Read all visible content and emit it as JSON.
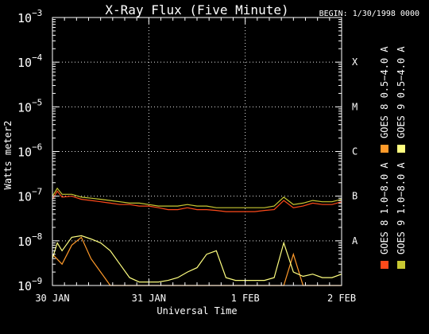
{
  "chart_data": {
    "type": "line",
    "title": "X-Ray Flux (Five Minute)",
    "begin_label": "BEGIN: 1/30/1998 0000",
    "xlabel": "Universal Time",
    "ylabel": "Watts meter2",
    "x_ticks": [
      "30 JAN",
      "31 JAN",
      "1 FEB",
      "2 FEB"
    ],
    "x_range_days": [
      0,
      3
    ],
    "y_scale": "log",
    "y_range": [
      1e-09,
      0.001
    ],
    "y_ticks": [
      {
        "base": "10",
        "exp": "−9",
        "value": 1e-09
      },
      {
        "base": "10",
        "exp": "−8",
        "value": 1e-08
      },
      {
        "base": "10",
        "exp": "−7",
        "value": 1e-07
      },
      {
        "base": "10",
        "exp": "−6",
        "value": 1e-06
      },
      {
        "base": "10",
        "exp": "−5",
        "value": 1e-05
      },
      {
        "base": "10",
        "exp": "−4",
        "value": 0.0001
      },
      {
        "base": "10",
        "exp": "−3",
        "value": 0.001
      }
    ],
    "flare_classes": [
      {
        "label": "A",
        "value": 1e-08
      },
      {
        "label": "B",
        "value": 1e-07
      },
      {
        "label": "C",
        "value": 1e-06
      },
      {
        "label": "M",
        "value": 1e-05
      },
      {
        "label": "X",
        "value": 0.0001
      }
    ],
    "grid": true,
    "legend_position": "right",
    "series": [
      {
        "name": "GOES 8 1.0−8.0 A",
        "color": "#ff4a1a",
        "x": [
          0,
          0.05,
          0.1,
          0.2,
          0.3,
          0.4,
          0.5,
          0.6,
          0.7,
          0.8,
          0.9,
          1.0,
          1.1,
          1.2,
          1.3,
          1.4,
          1.5,
          1.6,
          1.7,
          1.8,
          1.9,
          2.0,
          2.1,
          2.2,
          2.3,
          2.4,
          2.5,
          2.6,
          2.7,
          2.8,
          2.9,
          3.0
        ],
        "y": [
          8.5e-08,
          1.3e-07,
          9.5e-08,
          1e-07,
          8.5e-08,
          8e-08,
          7.5e-08,
          7e-08,
          6.5e-08,
          6.5e-08,
          6e-08,
          6e-08,
          5.5e-08,
          5e-08,
          5e-08,
          5.5e-08,
          5e-08,
          5e-08,
          4.8e-08,
          4.5e-08,
          4.5e-08,
          4.5e-08,
          4.5e-08,
          4.8e-08,
          5e-08,
          8e-08,
          5.5e-08,
          6e-08,
          7e-08,
          6.5e-08,
          6.5e-08,
          7.5e-08
        ]
      },
      {
        "name": "GOES 8 0.5−4.0 A",
        "color": "#ff9a2a",
        "x": [
          0,
          0.1,
          0.2,
          0.3,
          0.4,
          0.5,
          0.6,
          0.7,
          0.8,
          0.9,
          1.0,
          1.1,
          1.2,
          1.3,
          1.4,
          1.5,
          1.6,
          1.7,
          1.8,
          1.9,
          2.0,
          2.1,
          2.2,
          2.3,
          2.4,
          2.5,
          2.6,
          2.7,
          2.8,
          2.9,
          3.0
        ],
        "y": [
          5e-09,
          3e-09,
          8e-09,
          1.2e-08,
          4e-09,
          2e-09,
          1e-09,
          1e-09,
          1e-09,
          1e-09,
          1e-09,
          1e-09,
          1e-09,
          1e-09,
          1e-09,
          1e-09,
          1e-09,
          1e-09,
          1e-09,
          1e-09,
          1e-09,
          1e-09,
          1e-09,
          1e-09,
          1e-09,
          5e-09,
          1e-09,
          1e-09,
          1e-09,
          1e-09,
          1e-09
        ]
      },
      {
        "name": "GOES 9 1.0−8.0 A",
        "color": "#c8c832",
        "x": [
          0,
          0.05,
          0.1,
          0.2,
          0.3,
          0.4,
          0.5,
          0.6,
          0.7,
          0.8,
          0.9,
          1.0,
          1.1,
          1.2,
          1.3,
          1.4,
          1.5,
          1.6,
          1.7,
          1.8,
          1.9,
          2.0,
          2.1,
          2.2,
          2.3,
          2.4,
          2.5,
          2.6,
          2.7,
          2.8,
          2.9,
          3.0
        ],
        "y": [
          1e-07,
          1.5e-07,
          1.1e-07,
          1.1e-07,
          9.5e-08,
          9e-08,
          8.5e-08,
          8e-08,
          7.5e-08,
          7e-08,
          7e-08,
          6.5e-08,
          6e-08,
          6e-08,
          6e-08,
          6.5e-08,
          6e-08,
          6e-08,
          5.5e-08,
          5.5e-08,
          5.5e-08,
          5.5e-08,
          5.5e-08,
          5.5e-08,
          6e-08,
          9.5e-08,
          6.5e-08,
          7e-08,
          8e-08,
          7.5e-08,
          7.5e-08,
          8.5e-08
        ]
      },
      {
        "name": "GOES 9 0.5−4.0 A",
        "color": "#ffff80",
        "x": [
          0,
          0.05,
          0.1,
          0.2,
          0.3,
          0.4,
          0.5,
          0.6,
          0.7,
          0.8,
          0.9,
          1.0,
          1.1,
          1.2,
          1.3,
          1.4,
          1.5,
          1.6,
          1.7,
          1.8,
          1.9,
          2.0,
          2.1,
          2.2,
          2.3,
          2.4,
          2.5,
          2.6,
          2.7,
          2.8,
          2.9,
          3.0
        ],
        "y": [
          4e-09,
          9e-09,
          6e-09,
          1.2e-08,
          1.3e-08,
          1.1e-08,
          9e-09,
          6e-09,
          3e-09,
          1.5e-09,
          1.2e-09,
          1.2e-09,
          1.2e-09,
          1.3e-09,
          1.5e-09,
          2e-09,
          2.5e-09,
          5e-09,
          6e-09,
          1.5e-09,
          1.3e-09,
          1.3e-09,
          1.3e-09,
          1.3e-09,
          1.5e-09,
          9e-09,
          2e-09,
          1.6e-09,
          1.8e-09,
          1.5e-09,
          1.5e-09,
          1.8e-09
        ]
      }
    ]
  }
}
